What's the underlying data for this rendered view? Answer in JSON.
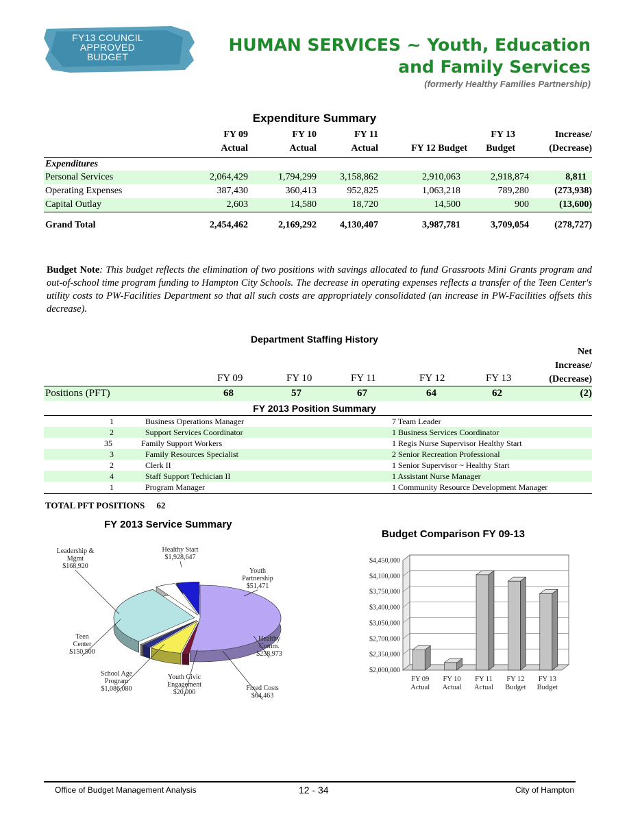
{
  "badge": {
    "line1": "FY13 COUNCIL",
    "line2": "APPROVED",
    "line3": "BUDGET"
  },
  "header": {
    "title_line1": "HUMAN SERVICES ~ Youth, Education",
    "title_line2": "and Family Services",
    "subtitle": "(formerly Healthy Families Partnership)"
  },
  "expenditure": {
    "title": "Expenditure Summary",
    "col_top": [
      "FY 09",
      "FY 10",
      "FY 11",
      "",
      "FY 13",
      "Increase/"
    ],
    "col_bottom": [
      "Actual",
      "Actual",
      "Actual",
      "FY 12 Budget",
      "Budget",
      "(Decrease)"
    ],
    "section_label": "Expenditures",
    "rows": [
      {
        "label": "Personal Services",
        "values": [
          "2,064,429",
          "1,794,299",
          "3,158,862",
          "2,910,063",
          "2,918,874",
          "8,811"
        ]
      },
      {
        "label": "Operating Expenses",
        "values": [
          "387,430",
          "360,413",
          "952,825",
          "1,063,218",
          "789,280",
          "(273,938)"
        ]
      },
      {
        "label": "Capital Outlay",
        "values": [
          "2,603",
          "14,580",
          "18,720",
          "14,500",
          "900",
          "(13,600)"
        ]
      }
    ],
    "total": {
      "label": "Grand Total",
      "values": [
        "2,454,462",
        "2,169,292",
        "4,130,407",
        "3,987,781",
        "3,709,054",
        "(278,727)"
      ]
    }
  },
  "budget_note": {
    "label": "Budget Note",
    "text": ": This budget reflects the elimination of two positions with savings allocated to fund Grassroots Mini Grants program and out-of-school time program funding to Hampton City Schools. The decrease in operating expenses reflects a transfer of the Teen Center's utility costs to PW-Facilities Department so that all such costs are appropriately consolidated (an increase in PW-Facilities offsets this decrease)."
  },
  "staffing": {
    "title": "Department Staffing History",
    "net_header": [
      "Net",
      "Increase/",
      "(Decrease)"
    ],
    "years": [
      "FY 09",
      "FY 10",
      "FY 11",
      "FY 12",
      "FY 13"
    ],
    "row_label": "Positions (PFT)",
    "values": [
      "68",
      "57",
      "67",
      "64",
      "62",
      "(2)"
    ]
  },
  "positions": {
    "title": "FY 2013 Position Summary",
    "left": [
      {
        "count": "1",
        "name": "Business Operations Manager"
      },
      {
        "count": "2",
        "name": "Support Services Coordinator"
      },
      {
        "count": "35",
        "name": "Family Support Workers"
      },
      {
        "count": "3",
        "name": "Family Resources Specialist"
      },
      {
        "count": "2",
        "name": "Clerk II"
      },
      {
        "count": "4",
        "name": "Staff Support Techician II"
      },
      {
        "count": "1",
        "name": "Program Manager"
      }
    ],
    "right": [
      "7 Team Leader",
      "1 Business Services Coordinator",
      "1 Regis Nurse Supervisor Healthy Start",
      "2 Senior Recreation Professional",
      "1 Senior Supervisor ~ Healthy Start",
      "1 Assistant Nurse Manager",
      "1 Community Resource Development Manager"
    ],
    "total_label": "TOTAL PFT POSITIONS",
    "total_value": "62"
  },
  "chart_data": [
    {
      "type": "pie",
      "title": "FY 2013 Service Summary",
      "slices": [
        {
          "label": "Healthy Start",
          "value": 1928647,
          "display": "$1,928,647",
          "color": "#b9a7f5"
        },
        {
          "label": "Youth Partnership",
          "value": 51471,
          "display": "$51,471",
          "color": "#7a1438"
        },
        {
          "label": "Healthy Comm.",
          "value": 238973,
          "display": "$238,973",
          "color": "#f5ef55"
        },
        {
          "label": "Fixed Costs",
          "value": 64463,
          "display": "$64,463",
          "color": "#2b2f8f"
        },
        {
          "label": "Youth Civic Engagement",
          "value": 20000,
          "display": "$20,000",
          "color": "#9a9a9a"
        },
        {
          "label": "School Age Program",
          "value": 1086080,
          "display": "$1,086,080",
          "color": "#b6e4e4"
        },
        {
          "label": "Teen Center",
          "value": 150500,
          "display": "$150,500",
          "color": "#ffffff"
        },
        {
          "label": "Leadership & Mgmt",
          "value": 168920,
          "display": "$168,920",
          "color": "#1a1ad0"
        }
      ],
      "label_lines": {
        "Healthy Start": [
          "Healthy Start",
          "$1,928,647"
        ],
        "Youth Partnership": [
          "Youth",
          "Partnership",
          "$51,471"
        ],
        "Healthy Comm.": [
          "Healthy",
          "Comm.",
          "$238,973"
        ],
        "Fixed Costs": [
          "Fixed Costs",
          "$64,463"
        ],
        "Youth Civic Engagement": [
          "Youth Civic",
          "Engagement",
          "$20,000"
        ],
        "School Age Program": [
          "School Age",
          "Program",
          "$1,086,080"
        ],
        "Teen Center": [
          "Teen",
          "Center",
          "$150,500"
        ],
        "Leadership & Mgmt": [
          "Leadership &",
          "Mgmt",
          "$168,920"
        ]
      }
    },
    {
      "type": "bar",
      "title": "Budget Comparison FY 09-13",
      "categories": [
        [
          "FY 09",
          "Actual"
        ],
        [
          "FY 10",
          "Actual"
        ],
        [
          "FY 11",
          "Actual"
        ],
        [
          "FY 12",
          "Budget"
        ],
        [
          "FY 13",
          "Budget"
        ]
      ],
      "values": [
        2454462,
        2169292,
        4130407,
        3987781,
        3709054
      ],
      "ylim": [
        2000000,
        4450000
      ],
      "yticks": [
        "$2,000,000",
        "$2,350,000",
        "$2,700,000",
        "$3,050,000",
        "$3,400,000",
        "$3,750,000",
        "$4,100,000",
        "$4,450,000"
      ],
      "bar_color": "#c4c4c4"
    }
  ],
  "footer": {
    "left": "Office of Budget Management Analysis",
    "center": "12 - 34",
    "right": "City of Hampton"
  }
}
